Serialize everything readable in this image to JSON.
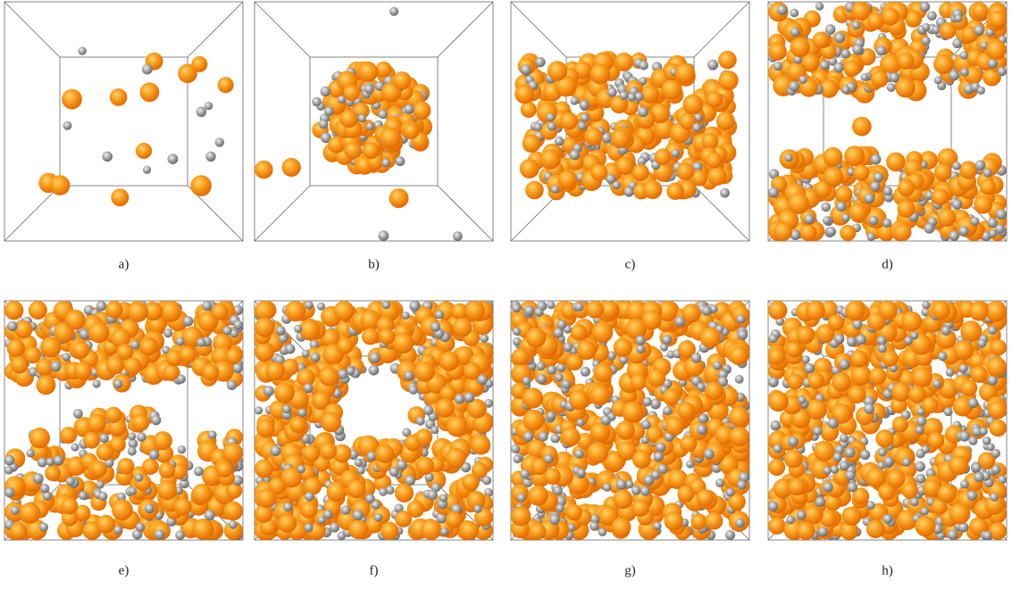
{
  "panels": [
    {
      "label": "a)"
    },
    {
      "label": "b)"
    },
    {
      "label": "c)"
    },
    {
      "label": "d)"
    },
    {
      "label": "e)"
    },
    {
      "label": "f)"
    },
    {
      "label": "g)"
    },
    {
      "label": "h)"
    }
  ]
}
